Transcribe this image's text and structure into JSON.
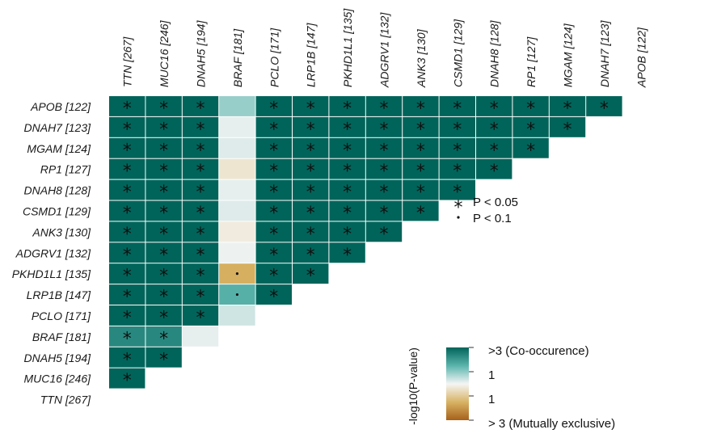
{
  "chart_data": {
    "type": "heatmap",
    "title": "",
    "rows": [
      "APOB [122]",
      "DNAH7 [123]",
      "MGAM [124]",
      "RP1 [127]",
      "DNAH8 [128]",
      "CSMD1 [129]",
      "ANK3 [130]",
      "ADGRV1 [132]",
      "PKHD1L1 [135]",
      "LRP1B [147]",
      "PCLO [171]",
      "BRAF [181]",
      "DNAH5 [194]",
      "MUC16 [246]",
      "TTN [267]"
    ],
    "columns": [
      "TTN [267]",
      "MUC16 [246]",
      "DNAH5 [194]",
      "BRAF [181]",
      "PCLO [171]",
      "LRP1B [147]",
      "PKHD1L1 [135]",
      "ADGRV1 [132]",
      "ANK3 [130]",
      "CSMD1 [129]",
      "DNAH8 [128]",
      "RP1 [127]",
      "MGAM [124]",
      "DNAH7 [123]",
      "APOB [122]"
    ],
    "value_scale": "signed -log10(P-value); positive = co-occurrence, negative = mutual exclusivity; capped at 3",
    "cells": [
      [
        3,
        3,
        3,
        0.6,
        3,
        3,
        3,
        3,
        3,
        3,
        3,
        3,
        3,
        3
      ],
      [
        3,
        3,
        3,
        0.1,
        3,
        3,
        3,
        3,
        3,
        3,
        3,
        3,
        3
      ],
      [
        3,
        3,
        3,
        0.15,
        3,
        3,
        3,
        3,
        3,
        3,
        3,
        3
      ],
      [
        3,
        3,
        3,
        -0.25,
        3,
        3,
        3,
        3,
        3,
        3,
        3
      ],
      [
        3,
        3,
        3,
        0.1,
        3,
        3,
        3,
        3,
        3,
        3
      ],
      [
        3,
        3,
        3,
        0.15,
        3,
        3,
        3,
        3,
        3
      ],
      [
        3,
        3,
        3,
        -0.15,
        3,
        3,
        3,
        3
      ],
      [
        3,
        3,
        3,
        0.05,
        3,
        3,
        3
      ],
      [
        3,
        3,
        3,
        -1.1,
        3,
        3
      ],
      [
        3,
        3,
        3,
        1.1,
        3
      ],
      [
        3,
        3,
        3,
        0.25
      ],
      [
        2.1,
        2.1,
        0.1
      ],
      [
        3,
        3
      ],
      [
        3
      ],
      []
    ],
    "significance": [
      [
        "*",
        "*",
        "*",
        "",
        "*",
        "*",
        "*",
        "*",
        "*",
        "*",
        "*",
        "*",
        "*",
        "*"
      ],
      [
        "*",
        "*",
        "*",
        "",
        "*",
        "*",
        "*",
        "*",
        "*",
        "*",
        "*",
        "*",
        "*"
      ],
      [
        "*",
        "*",
        "*",
        "",
        "*",
        "*",
        "*",
        "*",
        "*",
        "*",
        "*",
        "*"
      ],
      [
        "*",
        "*",
        "*",
        "",
        "*",
        "*",
        "*",
        "*",
        "*",
        "*",
        "*"
      ],
      [
        "*",
        "*",
        "*",
        "",
        "*",
        "*",
        "*",
        "*",
        "*",
        "*"
      ],
      [
        "*",
        "*",
        "*",
        "",
        "*",
        "*",
        "*",
        "*",
        "*"
      ],
      [
        "*",
        "*",
        "*",
        "",
        "*",
        "*",
        "*",
        "*"
      ],
      [
        "*",
        "*",
        "*",
        "",
        "*",
        "*",
        "*"
      ],
      [
        "*",
        "*",
        "*",
        ".",
        "*",
        "*"
      ],
      [
        "*",
        "*",
        "*",
        ".",
        "*"
      ],
      [
        "*",
        "*",
        "*",
        ""
      ],
      [
        "*",
        "*",
        ""
      ],
      [
        "*",
        "*"
      ],
      [
        "*"
      ],
      []
    ],
    "significance_legend": [
      {
        "symbol": "*",
        "label": "P < 0.05"
      },
      {
        "symbol": ".",
        "label": "P < 0.1"
      }
    ],
    "colorbar": {
      "title": "-log10(P-value)",
      "labels": [
        ">3 (Co-occurence)",
        "1",
        "1",
        "> 3 (Mutually exclusive)"
      ],
      "colors": {
        "co_occurrence_max": "#00645a",
        "co_occurrence_mid": "#5ab4ac",
        "neutral": "#f5f5f5",
        "exclusive_mid": "#d8b365",
        "exclusive_max": "#a6611a"
      }
    }
  }
}
